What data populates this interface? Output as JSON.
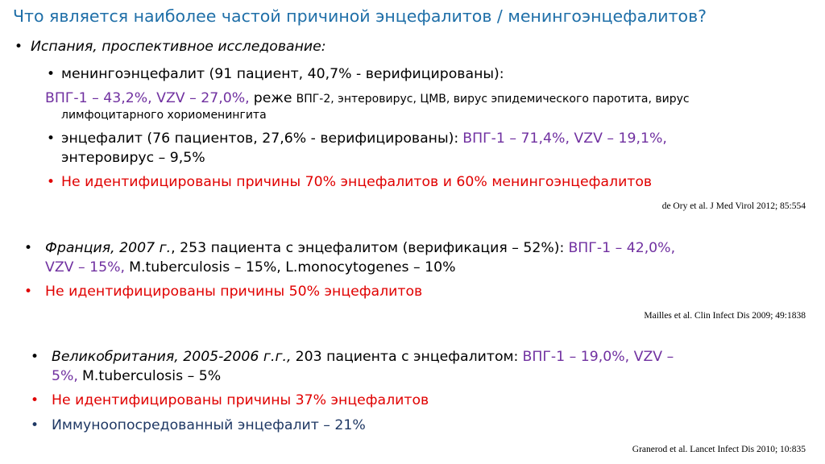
{
  "title": "Что является наиболее частой причиной энцефалитов / менингоэнцефалитов?",
  "spain": {
    "heading": "Испания, проспективное исследование:",
    "mening_line": "менингоэнцефалит (91 пациент, 40,7% - верифицированы):",
    "mening_causes": "ВПГ-1 – 43,2%, VZV – 27,0%,",
    "rarely_word": "реже",
    "rarely_list_1": "ВПГ-2, энтеровирус, ЦМВ, вирус эпидемического паротита, вирус",
    "rarely_list_2": "лимфоцитарного хориоменингита",
    "enc_line": "энцефалит (76 пациентов, 27,6% - верифицированы):",
    "enc_causes": "ВПГ-1 – 71,4%, VZV – 19,1%,",
    "enc_line2": "энтеровирус – 9,5%",
    "unidentified": "Не идентифицированы причины 70% энцефалитов и 60% менингоэнцефалитов",
    "ref": "de Ory et al. J Med Virol 2012; 85:554"
  },
  "france": {
    "country": "Франция, 2007 г.",
    "desc": ", 253 пациента с энцефалитом (верификация – 52%):",
    "causes1": "ВПГ-1 – 42,0%,",
    "causes2": "VZV – 15%,",
    "causes2_rest": "M.tuberculosis – 15%, L.monocytogenes – 10%",
    "unidentified": "Не идентифицированы причины 50% энцефалитов",
    "ref": "Mailles et al. Clin Infect Dis 2009; 49:1838"
  },
  "uk": {
    "country": "Великобритания, 2005-2006 г.г.,",
    "desc": "203 пациента с энцефалитом:",
    "causes1": "ВПГ-1 – 19,0%, VZV –",
    "causes2": "5%,",
    "causes2_rest": "M.tuberculosis – 5%",
    "unidentified": "Не идентифицированы причины 37% энцефалитов",
    "immune": "Иммуноопосредованный энцефалит – 21%",
    "ref": "Granerod et al. Lancet Infect Dis 2010; 10:835"
  },
  "bullet_glyph": "•",
  "colors": {
    "title": "#1f6fa8",
    "purple": "#7030a0",
    "red": "#e00000",
    "navy": "#1f3864"
  }
}
